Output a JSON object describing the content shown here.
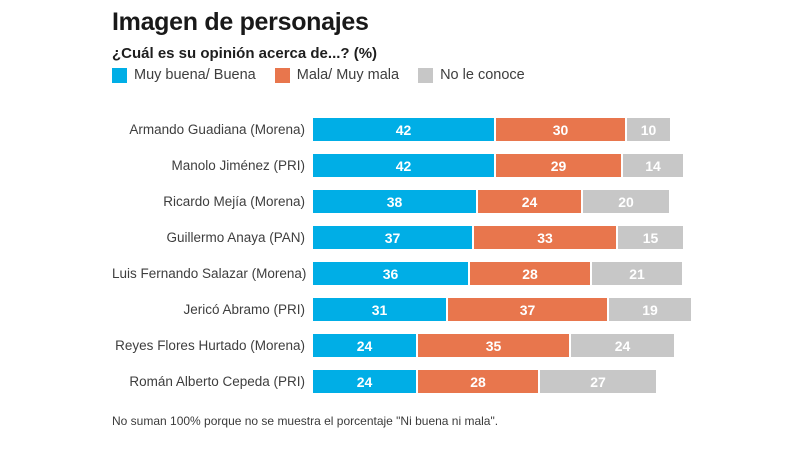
{
  "header": {
    "title": "Imagen de personajes",
    "subtitle": "¿Cuál es su opinión acerca de...? (%)"
  },
  "footer": {
    "note": "No suman 100% porque no se muestra el porcentaje \"Ni buena ni mala\"."
  },
  "chart_data": {
    "type": "bar",
    "orientation": "horizontal",
    "stacked": true,
    "unit": "%",
    "title": "Imagen de personajes",
    "subtitle": "¿Cuál es su opinión acerca de...? (%)",
    "legend_position": "top",
    "grid": false,
    "xlim": [
      0,
      100
    ],
    "value_labels": "inside-white-bold",
    "categories": [
      "Armando Guadiana (Morena)",
      "Manolo Jiménez (PRI)",
      "Ricardo Mejía (Morena)",
      "Guillermo Anaya (PAN)",
      "Luis Fernando Salazar (Morena)",
      "Jericó Abramo (PRI)",
      "Reyes Flores Hurtado (Morena)",
      "Román Alberto Cepeda (PRI)"
    ],
    "series": [
      {
        "name": "Muy buena/ Buena",
        "color": "#00AEE6",
        "values": [
          42,
          42,
          38,
          37,
          36,
          31,
          24,
          24
        ]
      },
      {
        "name": "Mala/ Muy mala",
        "color": "#E8764D",
        "values": [
          30,
          29,
          24,
          33,
          28,
          37,
          35,
          28
        ]
      },
      {
        "name": "No le conoce",
        "color": "#C7C7C7",
        "values": [
          10,
          14,
          20,
          15,
          21,
          19,
          24,
          27
        ]
      }
    ],
    "note": "No suman 100% porque no se muestra el porcentaje \"Ni buena ni mala\"."
  }
}
